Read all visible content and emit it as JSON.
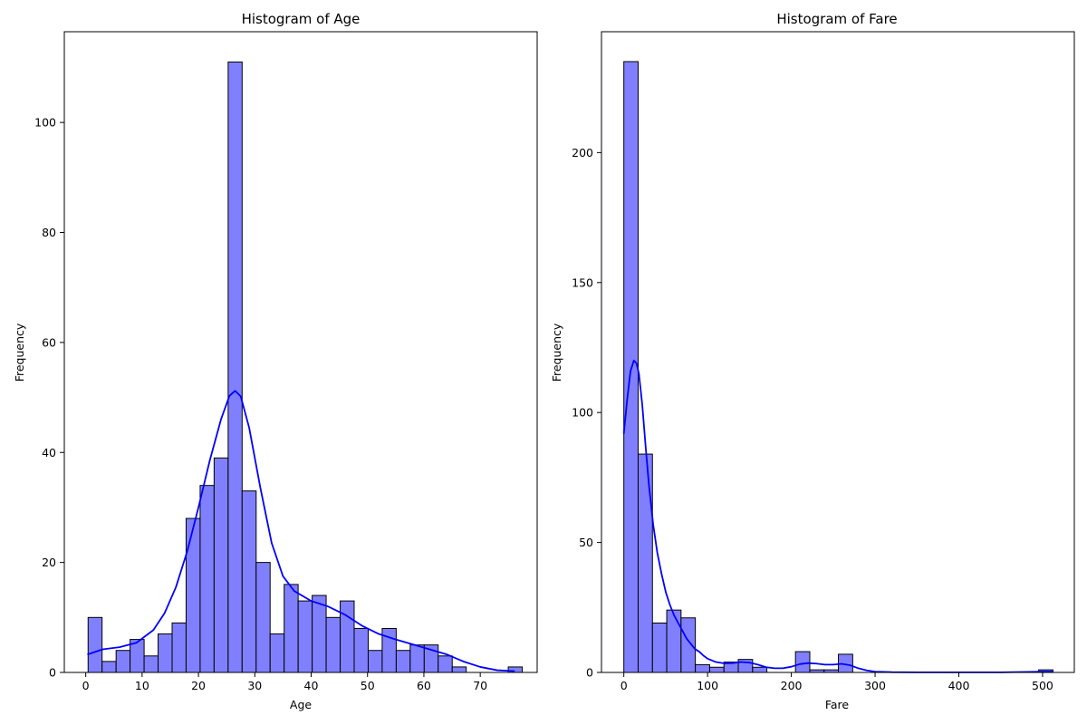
{
  "chart_data": [
    {
      "type": "bar",
      "title": "Histogram of Age",
      "xlabel": "Age",
      "ylabel": "Frequency",
      "xlim": [
        -3.8,
        80.1
      ],
      "ylim": [
        0,
        116.5
      ],
      "xticks": [
        0,
        10,
        20,
        30,
        40,
        50,
        60,
        70
      ],
      "yticks": [
        0,
        20,
        40,
        60,
        80,
        100
      ],
      "bin_edges": [
        0.42,
        2.9,
        5.39,
        7.87,
        10.36,
        12.84,
        15.33,
        17.81,
        20.3,
        22.78,
        25.27,
        27.75,
        30.24,
        32.72,
        35.21,
        37.69,
        40.18,
        42.66,
        45.15,
        47.63,
        50.12,
        52.6,
        55.09,
        57.57,
        60.06,
        62.54,
        65.03,
        67.51,
        70.0,
        72.48,
        74.97,
        77.45
      ],
      "values": [
        10,
        2,
        4,
        6,
        3,
        7,
        9,
        28,
        34,
        39,
        111,
        33,
        20,
        7,
        16,
        13,
        14,
        10,
        13,
        8,
        4,
        8,
        4,
        5,
        5,
        3,
        1,
        0,
        0,
        0,
        1
      ],
      "kde": {
        "x": [
          0.4,
          3,
          6,
          9,
          12,
          14,
          16,
          18,
          20,
          22,
          24,
          25.5,
          26.5,
          27.5,
          29,
          31,
          33,
          35,
          37,
          40,
          43,
          46,
          49,
          52,
          55,
          58,
          61,
          64,
          67,
          70,
          73,
          76
        ],
        "y": [
          3.3,
          4.2,
          4.6,
          5.4,
          7.7,
          10.8,
          15.5,
          22.0,
          30.0,
          38.5,
          46.0,
          50.3,
          51.2,
          50.2,
          44.5,
          33.5,
          23.5,
          17.5,
          14.8,
          13.0,
          12.0,
          10.5,
          8.5,
          7.0,
          6.0,
          5.1,
          4.2,
          3.3,
          2.0,
          1.0,
          0.4,
          0.25
        ]
      },
      "bar_color": "#8080ff",
      "edge_color": "#000000",
      "kde_color": "#0000ff",
      "grid": false
    },
    {
      "type": "bar",
      "title": "Histogram of Fare",
      "xlabel": "Fare",
      "ylabel": "Frequency",
      "xlim": [
        -26.7,
        537.9
      ],
      "ylim": [
        0,
        246.5
      ],
      "xticks": [
        0,
        100,
        200,
        300,
        400,
        500
      ],
      "yticks": [
        0,
        50,
        100,
        150,
        200
      ],
      "bin_edges": [
        0,
        17.08,
        34.16,
        51.24,
        68.32,
        85.4,
        102.48,
        119.56,
        136.64,
        153.72,
        170.8,
        187.88,
        204.96,
        222.04,
        239.12,
        256.2,
        273.28,
        290.36,
        307.44,
        324.52,
        341.6,
        358.68,
        375.76,
        392.84,
        409.92,
        427.0,
        444.08,
        461.16,
        478.24,
        495.32,
        512.4
      ],
      "values": [
        235,
        84,
        19,
        24,
        21,
        3,
        2,
        4,
        5,
        2,
        0,
        0,
        8,
        1,
        1,
        7,
        0,
        0,
        0,
        0,
        0,
        0,
        0,
        0,
        0,
        0,
        0,
        0,
        0,
        1
      ],
      "kde": {
        "x": [
          0,
          4,
          8,
          12,
          15,
          18,
          22,
          26,
          30,
          35,
          40,
          45,
          50,
          55,
          60,
          65,
          70,
          75,
          80,
          85,
          90,
          95,
          100,
          110,
          120,
          130,
          140,
          150,
          160,
          170,
          180,
          190,
          200,
          210,
          220,
          230,
          240,
          250,
          260,
          270,
          280,
          290,
          300,
          320,
          350,
          400,
          450,
          500,
          512
        ],
        "y": [
          92,
          105,
          116,
          120,
          119,
          115,
          103,
          87,
          72,
          57,
          46,
          38,
          31,
          26,
          22,
          19,
          16,
          13,
          11,
          9,
          8,
          6.5,
          5.3,
          4.0,
          3.5,
          3.6,
          4.0,
          3.8,
          3.0,
          2.0,
          1.6,
          1.6,
          2.2,
          3.2,
          3.6,
          3.4,
          3.0,
          3.0,
          3.3,
          2.8,
          1.6,
          0.8,
          0.3,
          0.1,
          0.05,
          0.03,
          0.05,
          0.3,
          0.3
        ]
      },
      "bar_color": "#8080ff",
      "edge_color": "#000000",
      "kde_color": "#0000ff",
      "grid": false
    }
  ]
}
